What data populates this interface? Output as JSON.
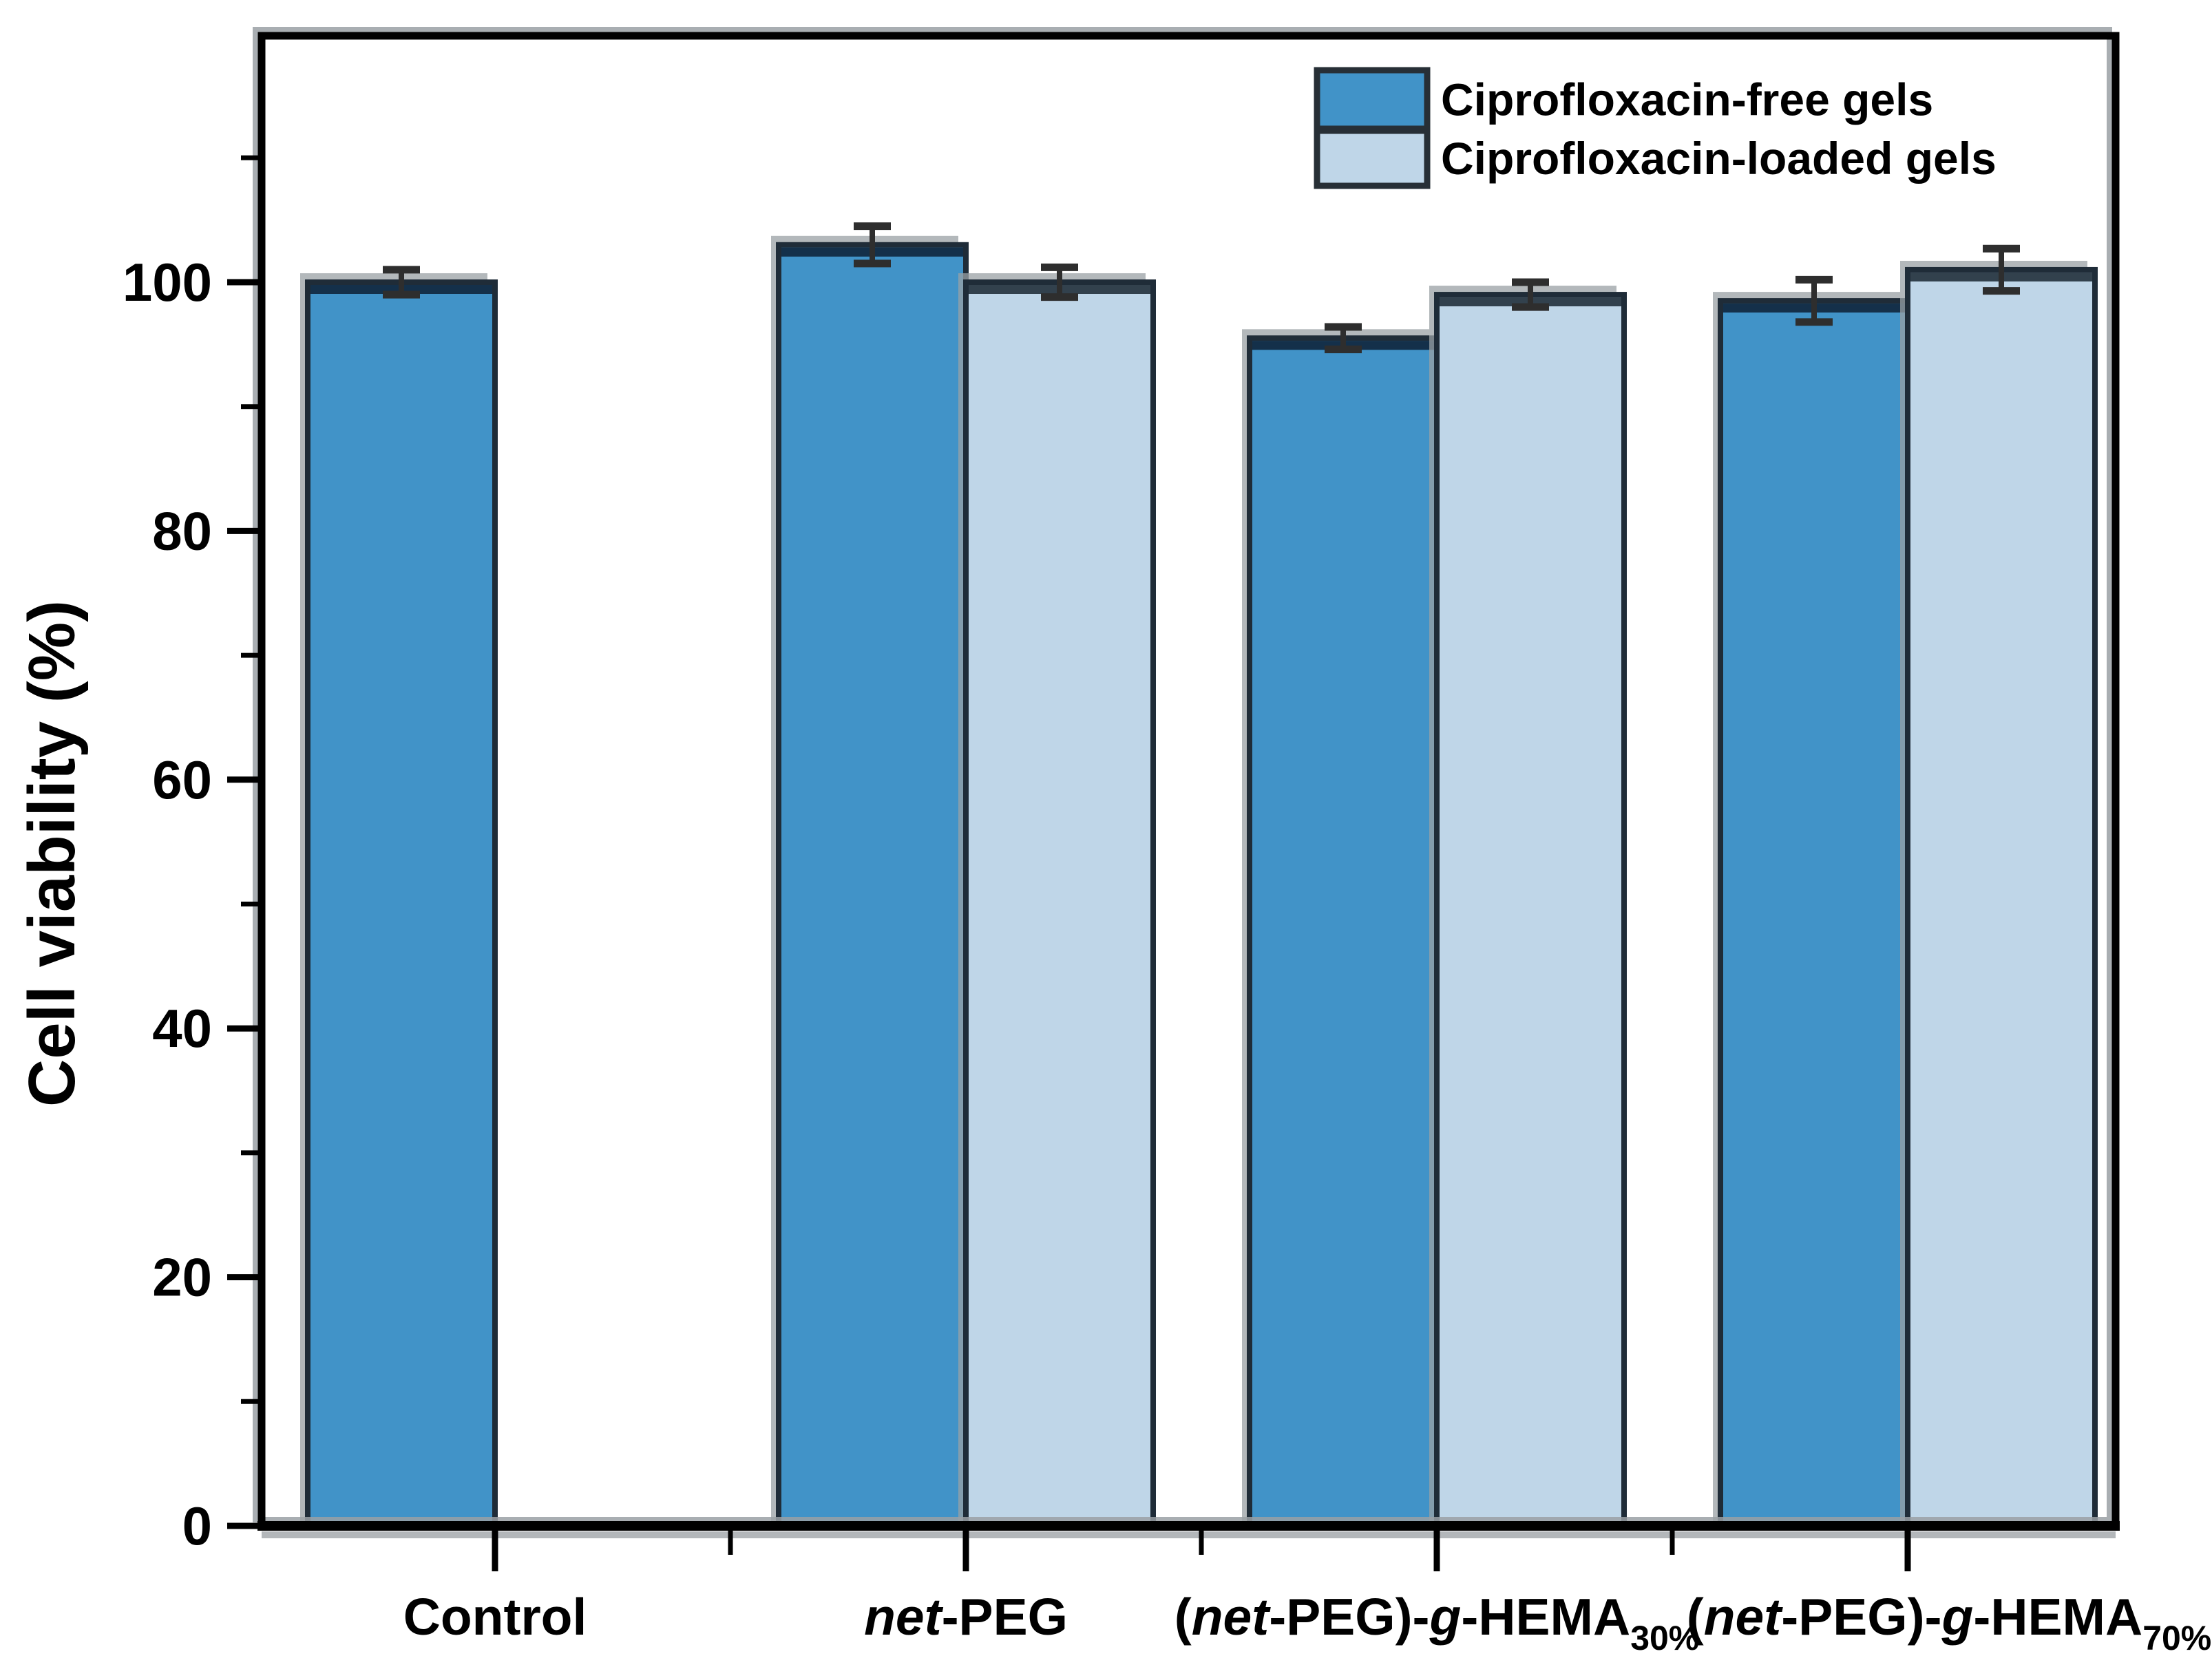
{
  "figure": {
    "kind": "scientific-bar-chart",
    "background": "#ffffff"
  },
  "chart_data": {
    "type": "bar",
    "title": "",
    "xlabel": "",
    "ylabel": "Cell viability (%)",
    "ylim": [
      0,
      120
    ],
    "yticks_major": [
      0,
      20,
      40,
      60,
      80,
      100
    ],
    "yticks_minor": [
      10,
      30,
      50,
      70,
      90,
      110
    ],
    "grid": false,
    "legend": {
      "position": "top-right-inside",
      "items": [
        "Ciprofloxacin-free gels",
        "Ciprofloxacin-loaded gels"
      ]
    },
    "categories": [
      {
        "label": "Control",
        "segments": [
          {
            "t": "Control"
          }
        ]
      },
      {
        "label": "net-PEG",
        "segments": [
          {
            "t": "net",
            "i": 1
          },
          {
            "t": "-PEG"
          }
        ]
      },
      {
        "label": "(net-PEG)-g-HEMA30%",
        "segments": [
          {
            "t": "("
          },
          {
            "t": "net",
            "i": 1
          },
          {
            "t": "-PEG)-"
          },
          {
            "t": "g",
            "i": 1
          },
          {
            "t": "-HEMA"
          },
          {
            "t": "30%",
            "sub": 1
          }
        ]
      },
      {
        "label": "(net-PEG)-g-HEMA70%",
        "segments": [
          {
            "t": "("
          },
          {
            "t": "net",
            "i": 1
          },
          {
            "t": "-PEG)-"
          },
          {
            "t": "g",
            "i": 1
          },
          {
            "t": "-HEMA"
          },
          {
            "t": "70%",
            "sub": 1
          }
        ]
      }
    ],
    "series": [
      {
        "name": "Ciprofloxacin-free gels",
        "fill": "#4193c8",
        "top_edge": "#14304a",
        "values": [
          100,
          103,
          95.5,
          98.5
        ],
        "errors": [
          1.0,
          1.5,
          0.9,
          1.7
        ]
      },
      {
        "name": "Ciprofloxacin-loaded gels",
        "fill": "#bfd6e8",
        "top_edge": "#32414d",
        "values": [
          null,
          100,
          99,
          101
        ],
        "errors": [
          null,
          1.2,
          1.0,
          1.7
        ]
      }
    ],
    "colors": {
      "axis": "#000000",
      "bar_outline": "#1f2c38",
      "error_bar": "#2e2e2e",
      "shadow": "#9aa0a4",
      "text": "#000000"
    }
  }
}
